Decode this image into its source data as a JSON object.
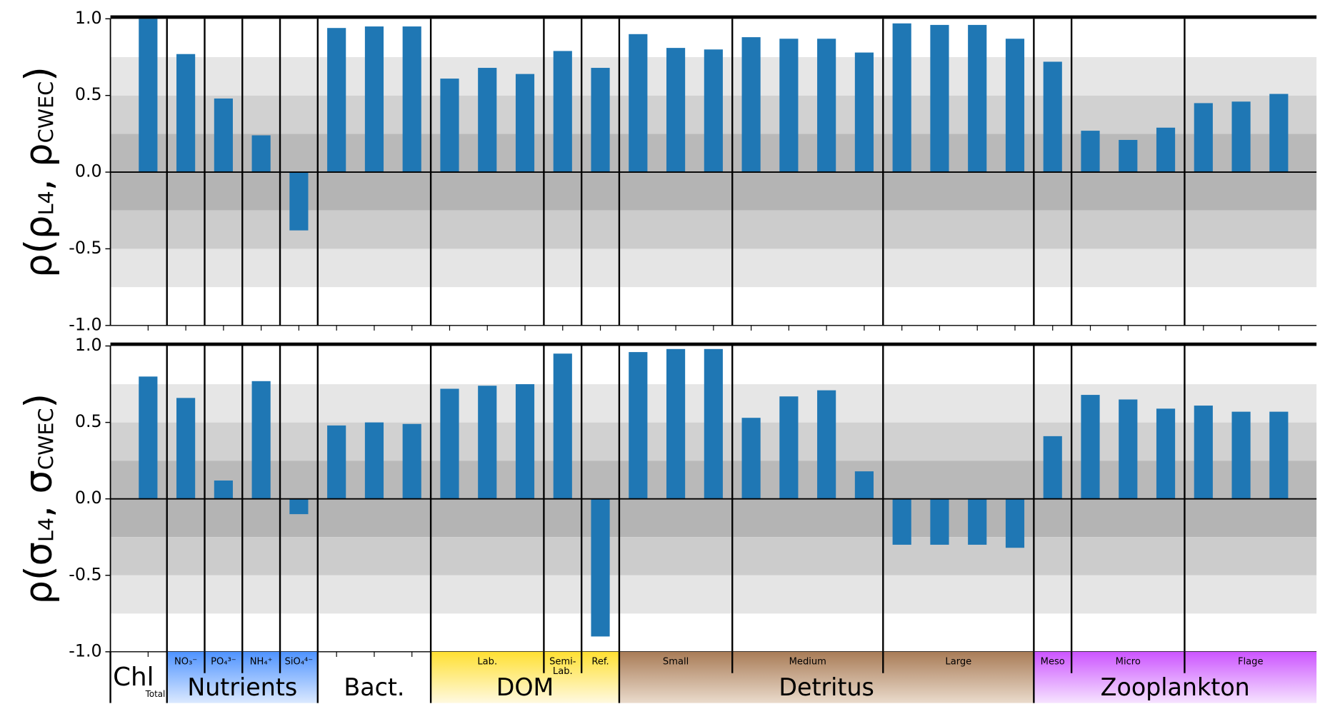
{
  "chart_data": [
    {
      "type": "bar",
      "ylabel": [
        "ρ(ρ",
        "L4",
        ", ρ",
        "CWEC",
        ")"
      ],
      "series": [
        {
          "color": "#1f77b4",
          "values": [
            1.0,
            0.77,
            0.48,
            0.24,
            -0.38,
            0.94,
            0.95,
            0.95,
            0.61,
            0.68,
            0.64,
            0.79,
            0.68,
            0.9,
            0.81,
            0.8,
            0.88,
            0.87,
            0.87,
            0.78,
            0.97,
            0.96,
            0.96,
            0.87,
            0.72,
            0.27,
            0.21,
            0.29,
            0.45,
            0.46,
            0.51
          ]
        }
      ],
      "ylim": [
        -1,
        1
      ],
      "yticks": [
        {
          "value": -1,
          "label": "-1.0"
        },
        {
          "value": -0.5,
          "label": "-0.5"
        },
        {
          "value": 0,
          "label": "0.0"
        },
        {
          "value": 0.5,
          "label": "0.5"
        },
        {
          "value": 1,
          "label": "1.0"
        }
      ],
      "bands": [
        {
          "range": [
            0,
            0.25
          ],
          "color": "#b9b9b9"
        },
        {
          "range": [
            0.25,
            0.5
          ],
          "color": "#d1d1d1"
        },
        {
          "range": [
            0.5,
            0.75
          ],
          "color": "#e6e6e6"
        },
        {
          "range": [
            -0.25,
            0
          ],
          "color": "#b4b4b4"
        },
        {
          "range": [
            -0.5,
            -0.25
          ],
          "color": "#cccccc"
        },
        {
          "range": [
            -0.75,
            -0.5
          ],
          "color": "#e5e5e5"
        }
      ]
    },
    {
      "type": "bar",
      "ylabel": [
        "ρ(σ",
        "L4",
        ", σ",
        "CWEC",
        ")"
      ],
      "series": [
        {
          "color": "#1f77b4",
          "values": [
            0.8,
            0.66,
            0.12,
            0.77,
            -0.1,
            0.48,
            0.5,
            0.49,
            0.72,
            0.74,
            0.75,
            0.95,
            -0.9,
            0.96,
            0.98,
            0.98,
            0.53,
            0.67,
            0.71,
            0.18,
            -0.3,
            -0.3,
            -0.3,
            -0.32,
            0.41,
            0.68,
            0.65,
            0.59,
            0.61,
            0.57,
            0.57
          ]
        }
      ],
      "ylim": [
        -1,
        1
      ],
      "yticks": [
        {
          "value": -1,
          "label": "-1.0"
        },
        {
          "value": -0.5,
          "label": "-0.5"
        },
        {
          "value": 0,
          "label": "0.0"
        },
        {
          "value": 0.5,
          "label": "0.5"
        },
        {
          "value": 1,
          "label": "1.0"
        }
      ],
      "bands": [
        {
          "range": [
            0,
            0.25
          ],
          "color": "#b9b9b9"
        },
        {
          "range": [
            0.25,
            0.5
          ],
          "color": "#d1d1d1"
        },
        {
          "range": [
            0.5,
            0.75
          ],
          "color": "#e6e6e6"
        },
        {
          "range": [
            -0.25,
            0
          ],
          "color": "#b4b4b4"
        },
        {
          "range": [
            -0.5,
            -0.25
          ],
          "color": "#cccccc"
        },
        {
          "range": [
            -0.75,
            -0.5
          ],
          "color": "#e5e5e5"
        }
      ]
    }
  ],
  "groups": [
    {
      "name": "Chl",
      "color": null,
      "subgroups": [
        {
          "name": [
            "Total"
          ],
          "size": 1
        }
      ]
    },
    {
      "name": "Nutrients",
      "color": [
        "#4f93ff",
        "#dbe9ff"
      ],
      "subgroups": [
        {
          "name": [
            "NO₃⁻"
          ],
          "size": 1
        },
        {
          "name": [
            "PO₄³⁻"
          ],
          "size": 1
        },
        {
          "name": [
            "NH₄⁺"
          ],
          "size": 1
        },
        {
          "name": [
            "SiO₄⁴⁻"
          ],
          "size": 1
        }
      ]
    },
    {
      "name": "Bact.",
      "color": null,
      "subgroups": [
        {
          "size": 3
        }
      ]
    },
    {
      "name": "DOM",
      "color": [
        "#ffe033",
        "#fff9e0"
      ],
      "subgroups": [
        {
          "name": [
            "Lab."
          ],
          "size": 3
        },
        {
          "name": [
            "Semi-",
            "Lab."
          ],
          "size": 1
        },
        {
          "name": [
            "Ref."
          ],
          "size": 1
        }
      ]
    },
    {
      "name": "Detritus",
      "color": [
        "#a97c57",
        "#eadbcc"
      ],
      "subgroups": [
        {
          "name": [
            "Small"
          ],
          "size": 3
        },
        {
          "name": [
            "Medium"
          ],
          "size": 4
        },
        {
          "name": [
            "Large"
          ],
          "size": 4
        }
      ]
    },
    {
      "name": "Zooplankton",
      "color": [
        "#cc55ff",
        "#f6e3ff"
      ],
      "subgroups": [
        {
          "name": [
            "Meso"
          ],
          "size": 1
        },
        {
          "name": [
            "Micro"
          ],
          "size": 3
        },
        {
          "name": [
            "Flage"
          ],
          "size": 3
        }
      ]
    }
  ]
}
